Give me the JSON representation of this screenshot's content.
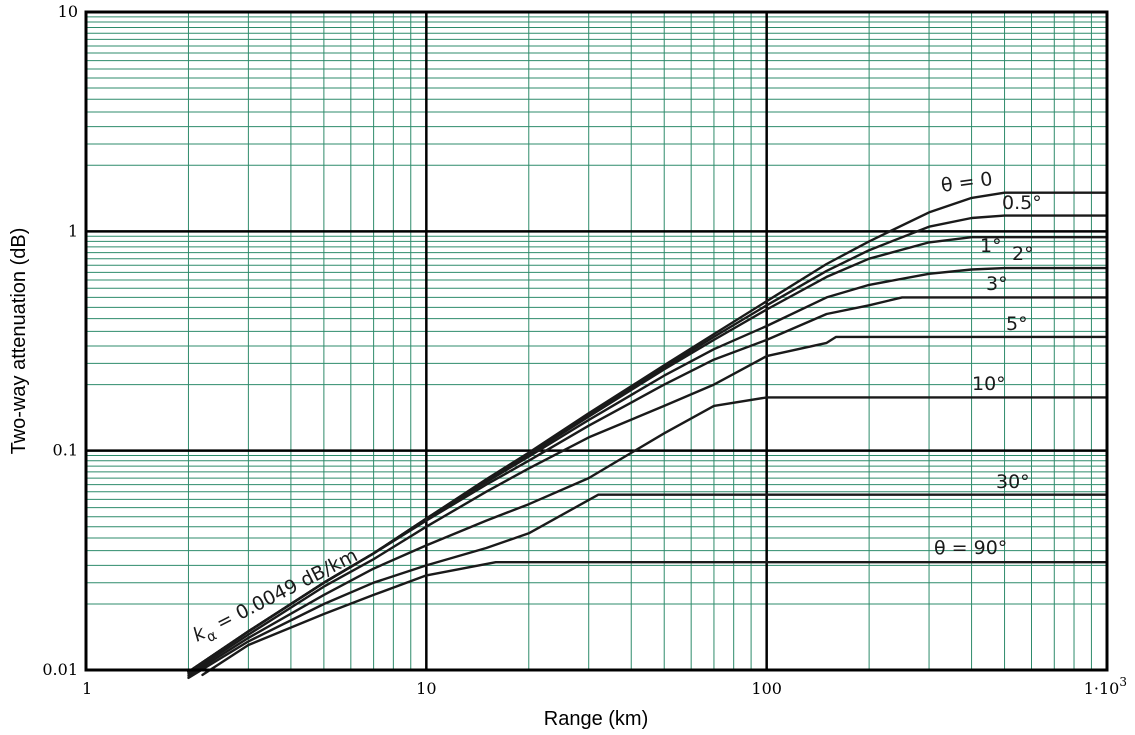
{
  "chart_data": {
    "type": "line",
    "xlabel": "Range (km)",
    "ylabel": "Two-way attenuation (dB)",
    "x_scale": "log",
    "y_scale": "log",
    "xlim": [
      1,
      1000
    ],
    "ylim": [
      0.01,
      10
    ],
    "grid": true,
    "x_ticks": [
      {
        "value": 1,
        "label": "1"
      },
      {
        "value": 10,
        "label": "10"
      },
      {
        "value": 100,
        "label": "100"
      },
      {
        "value": 1000,
        "label": "1·10",
        "exp": "3"
      }
    ],
    "y_ticks": [
      {
        "value": 0.01,
        "label": "0.01"
      },
      {
        "value": 0.1,
        "label": "0.1"
      },
      {
        "value": 1,
        "label": "1"
      },
      {
        "value": 10,
        "label": "10"
      }
    ],
    "annotation": {
      "text": "k",
      "subscript": "α",
      "rest": " = 0.0049 dB/km"
    },
    "series": [
      {
        "name": "θ = 0",
        "points": [
          [
            2,
            0.0098
          ],
          [
            3,
            0.015
          ],
          [
            5,
            0.025
          ],
          [
            7,
            0.034
          ],
          [
            10,
            0.049
          ],
          [
            15,
            0.074
          ],
          [
            20,
            0.098
          ],
          [
            30,
            0.148
          ],
          [
            50,
            0.245
          ],
          [
            70,
            0.34
          ],
          [
            100,
            0.48
          ],
          [
            150,
            0.71
          ],
          [
            200,
            0.9
          ],
          [
            300,
            1.22
          ],
          [
            400,
            1.42
          ],
          [
            500,
            1.5
          ],
          [
            1000,
            1.5
          ]
        ]
      },
      {
        "name": "0.5°",
        "points": [
          [
            2,
            0.0098
          ],
          [
            3,
            0.015
          ],
          [
            5,
            0.025
          ],
          [
            7,
            0.034
          ],
          [
            10,
            0.049
          ],
          [
            15,
            0.073
          ],
          [
            20,
            0.097
          ],
          [
            30,
            0.145
          ],
          [
            50,
            0.24
          ],
          [
            70,
            0.33
          ],
          [
            100,
            0.46
          ],
          [
            150,
            0.66
          ],
          [
            200,
            0.82
          ],
          [
            300,
            1.05
          ],
          [
            400,
            1.15
          ],
          [
            500,
            1.18
          ],
          [
            1000,
            1.18
          ]
        ]
      },
      {
        "name": "1°",
        "points": [
          [
            2,
            0.0098
          ],
          [
            3,
            0.015
          ],
          [
            5,
            0.025
          ],
          [
            7,
            0.034
          ],
          [
            10,
            0.049
          ],
          [
            15,
            0.073
          ],
          [
            20,
            0.096
          ],
          [
            30,
            0.143
          ],
          [
            50,
            0.235
          ],
          [
            70,
            0.32
          ],
          [
            100,
            0.44
          ],
          [
            150,
            0.62
          ],
          [
            200,
            0.75
          ],
          [
            300,
            0.89
          ],
          [
            400,
            0.94
          ],
          [
            1000,
            0.94
          ]
        ]
      },
      {
        "name": "2°",
        "points": [
          [
            2,
            0.0098
          ],
          [
            3,
            0.015
          ],
          [
            5,
            0.025
          ],
          [
            7,
            0.034
          ],
          [
            10,
            0.049
          ],
          [
            15,
            0.072
          ],
          [
            20,
            0.094
          ],
          [
            30,
            0.138
          ],
          [
            50,
            0.22
          ],
          [
            70,
            0.29
          ],
          [
            100,
            0.37
          ],
          [
            150,
            0.5
          ],
          [
            200,
            0.57
          ],
          [
            300,
            0.64
          ],
          [
            400,
            0.67
          ],
          [
            500,
            0.68
          ],
          [
            1000,
            0.68
          ]
        ]
      },
      {
        "name": "3°",
        "points": [
          [
            2,
            0.0098
          ],
          [
            3,
            0.015
          ],
          [
            5,
            0.025
          ],
          [
            7,
            0.034
          ],
          [
            10,
            0.048
          ],
          [
            15,
            0.07
          ],
          [
            20,
            0.09
          ],
          [
            30,
            0.13
          ],
          [
            50,
            0.2
          ],
          [
            70,
            0.26
          ],
          [
            100,
            0.32
          ],
          [
            150,
            0.42
          ],
          [
            200,
            0.46
          ],
          [
            250,
            0.5
          ],
          [
            1000,
            0.5
          ]
        ]
      },
      {
        "name": "5°",
        "points": [
          [
            2,
            0.0096
          ],
          [
            3,
            0.0145
          ],
          [
            5,
            0.024
          ],
          [
            7,
            0.032
          ],
          [
            10,
            0.045
          ],
          [
            15,
            0.065
          ],
          [
            20,
            0.083
          ],
          [
            30,
            0.115
          ],
          [
            50,
            0.16
          ],
          [
            70,
            0.2
          ],
          [
            100,
            0.27
          ],
          [
            150,
            0.31
          ],
          [
            160,
            0.33
          ],
          [
            1000,
            0.33
          ]
        ]
      },
      {
        "name": "10°",
        "points": [
          [
            2,
            0.0094
          ],
          [
            3,
            0.014
          ],
          [
            5,
            0.022
          ],
          [
            7,
            0.029
          ],
          [
            10,
            0.037
          ],
          [
            15,
            0.048
          ],
          [
            20,
            0.057
          ],
          [
            30,
            0.075
          ],
          [
            50,
            0.12
          ],
          [
            70,
            0.16
          ],
          [
            100,
            0.175
          ],
          [
            1000,
            0.175
          ]
        ]
      },
      {
        "name": "30°",
        "points": [
          [
            2,
            0.0092
          ],
          [
            3,
            0.0135
          ],
          [
            5,
            0.02
          ],
          [
            7,
            0.025
          ],
          [
            10,
            0.03
          ],
          [
            15,
            0.036
          ],
          [
            20,
            0.042
          ],
          [
            32,
            0.063
          ],
          [
            1000,
            0.063
          ]
        ]
      },
      {
        "name": "θ = 90°",
        "points": [
          [
            2.2,
            0.0095
          ],
          [
            3,
            0.013
          ],
          [
            5,
            0.018
          ],
          [
            7,
            0.022
          ],
          [
            10,
            0.027
          ],
          [
            16,
            0.031
          ],
          [
            1000,
            0.031
          ]
        ]
      }
    ]
  }
}
